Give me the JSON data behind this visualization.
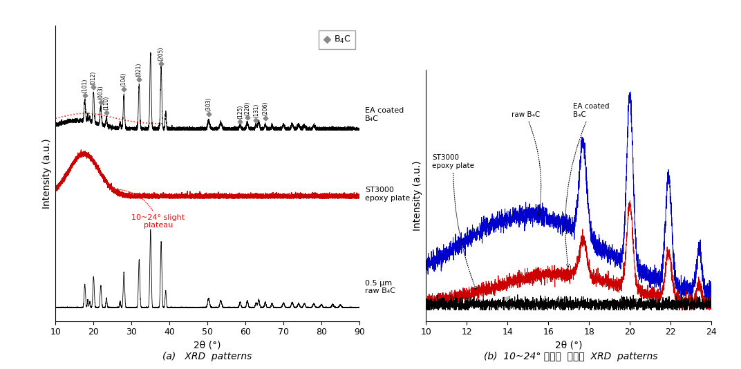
{
  "fig_width": 10.72,
  "fig_height": 5.34,
  "dpi": 100,
  "background": "#ffffff",
  "panel_a": {
    "xlim": [
      10,
      90
    ],
    "ylim": [
      -0.05,
      1.08
    ],
    "xlabel": "2θ (°)",
    "ylabel": "Intensity (a.u.)",
    "peak_positions": [
      17.7,
      20.0,
      21.9,
      23.4,
      28.0,
      32.0,
      37.8,
      50.3,
      58.6,
      60.5,
      62.8,
      65.2,
      72.3
    ],
    "peak_labels": [
      "(101)",
      "(012)",
      "(003)",
      "(110)",
      "(104)",
      "(021)",
      "(205)",
      "(303)",
      "(125)",
      "(220)",
      "(131)",
      "(206)"
    ],
    "plateau_text": "10~24° slight\nplateau",
    "caption": "(a)   XRD  patterns",
    "ea_label": "EA coated\nB₄C",
    "st_label": "ST3000\nepoxy plate",
    "raw_label": "0.5 μm\nraw B₄C",
    "legend_label": "B₄C"
  },
  "panel_b": {
    "xlim": [
      10,
      24
    ],
    "xlabel": "2θ (°)",
    "ylabel": "Intensity (a.u.)",
    "st_label": "ST3000\nepoxy plate",
    "raw_label": "raw B₄C",
    "ea_label": "EA coated\nB₄C",
    "caption": "(b)  10~24° 범위의  중첩된  XRD  patterns",
    "blue_color": "#0000cc",
    "red_color": "#cc0000",
    "black_color": "#000000"
  }
}
